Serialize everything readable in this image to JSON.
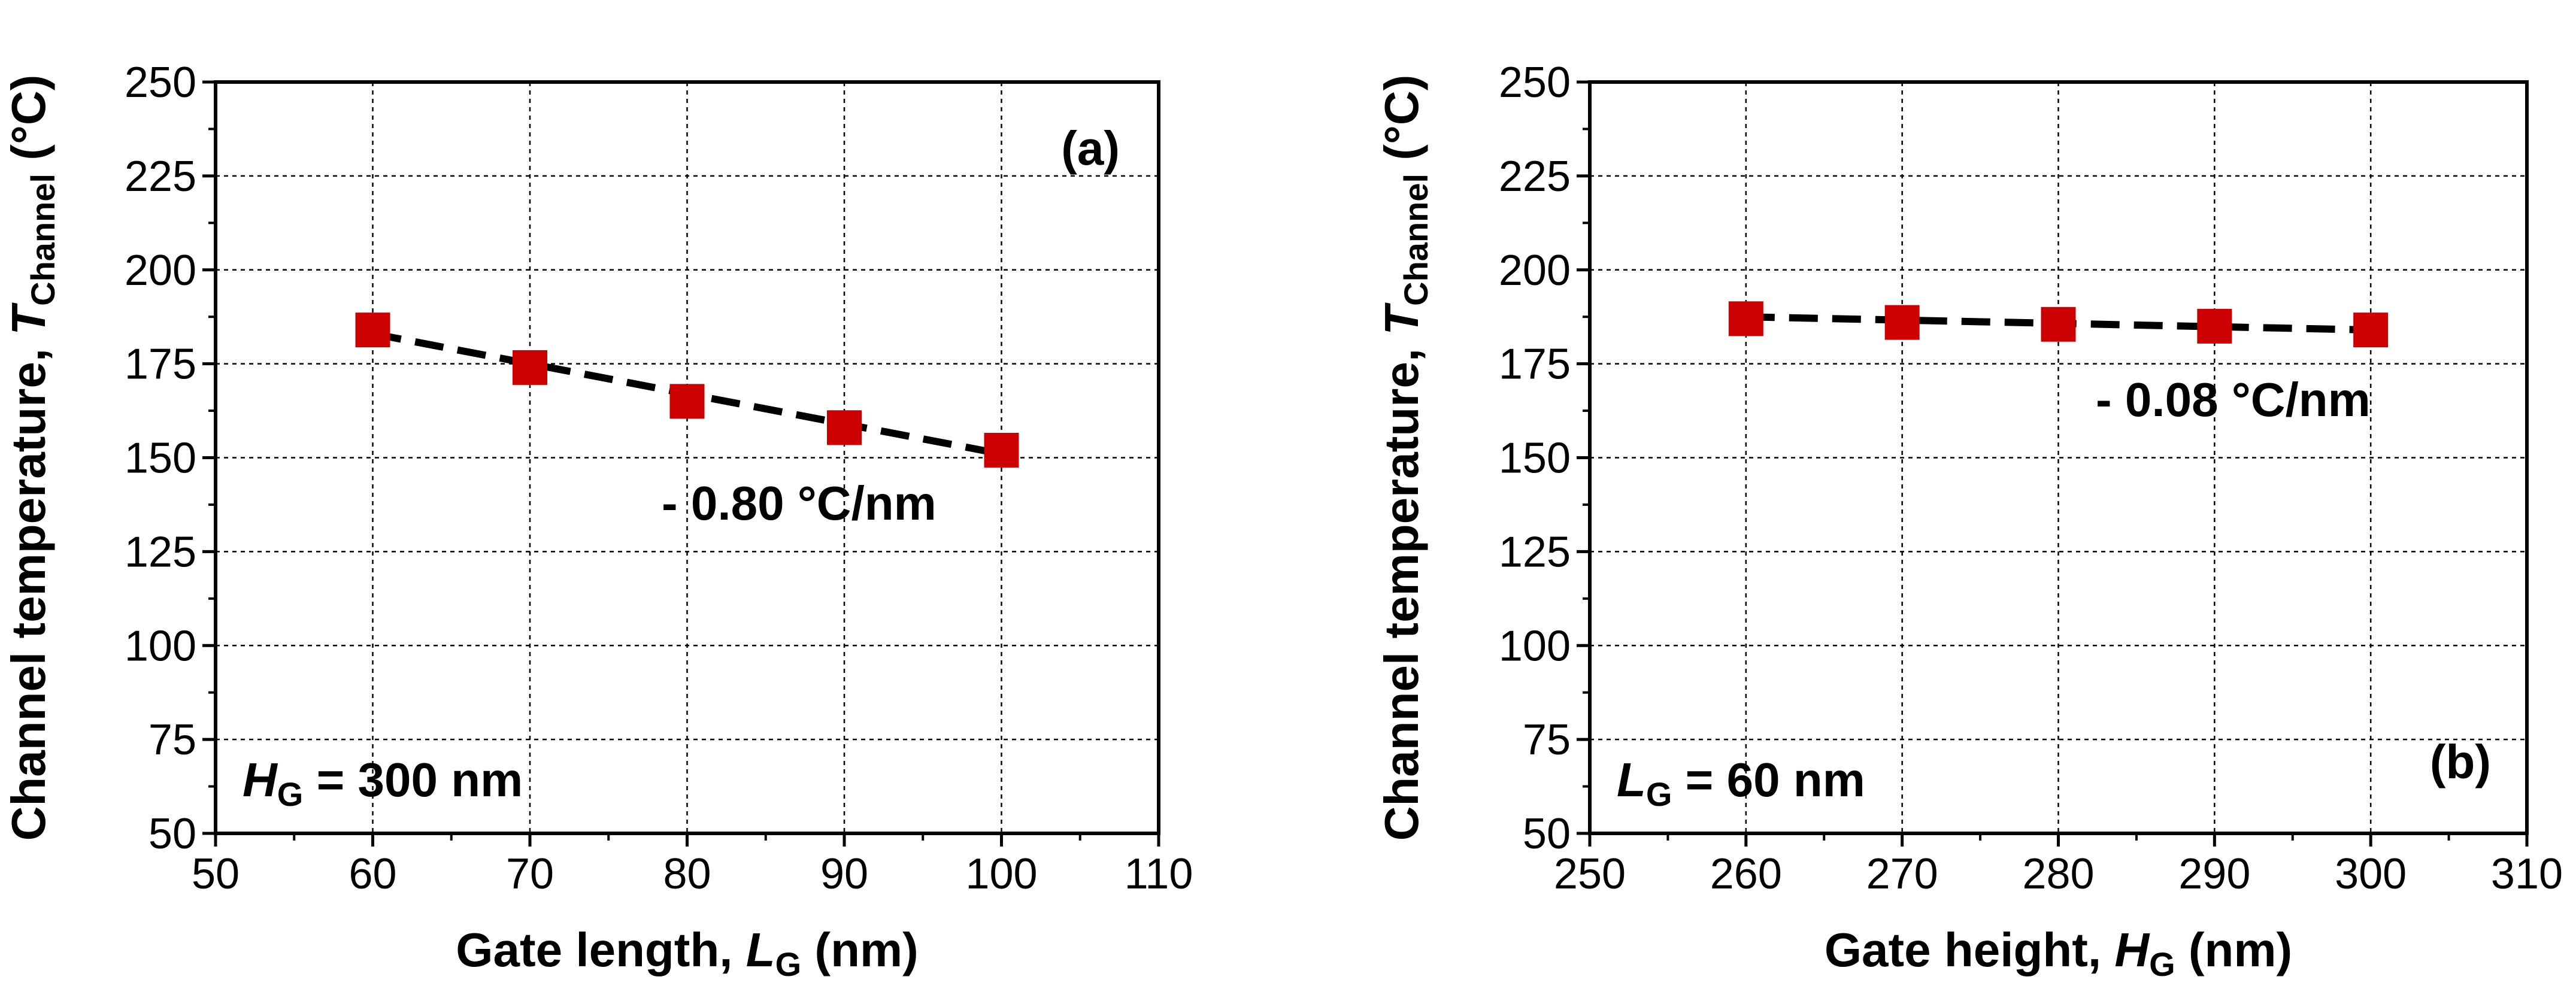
{
  "chart_data": [
    {
      "type": "scatter",
      "panel_label": "(a)",
      "x": [
        60,
        70,
        80,
        90,
        100
      ],
      "y": [
        184,
        174,
        165,
        158,
        152
      ],
      "fit": {
        "x": [
          60,
          100
        ],
        "y": [
          183,
          151
        ]
      },
      "xlim": [
        50,
        110
      ],
      "ylim": [
        50,
        250
      ],
      "xticks": [
        "50",
        "60",
        "70",
        "80",
        "90",
        "100",
        "110"
      ],
      "yticks": [
        "50",
        "75",
        "100",
        "125",
        "150",
        "175",
        "200",
        "225",
        "250"
      ],
      "xlabel": {
        "text": "Gate length, ",
        "var": "L",
        "sub": "G",
        "unit": " (nm)"
      },
      "ylabel": {
        "text": "Channel temperature, ",
        "var": "T",
        "sub": "Channel",
        "unit": " (°C)"
      },
      "slope_text": "- 0.80 °C/nm",
      "condition": {
        "var": "H",
        "sub": "G",
        "text": " = 300 nm"
      },
      "marker_color": "#cc0000"
    },
    {
      "type": "scatter",
      "panel_label": "(b)",
      "x": [
        260,
        270,
        280,
        290,
        300
      ],
      "y": [
        187,
        186,
        185.5,
        185,
        184
      ],
      "fit": {
        "x": [
          260,
          300
        ],
        "y": [
          187.5,
          184
        ]
      },
      "xlim": [
        250,
        310
      ],
      "ylim": [
        50,
        250
      ],
      "xticks": [
        "250",
        "260",
        "270",
        "280",
        "290",
        "300",
        "310"
      ],
      "yticks": [
        "50",
        "75",
        "100",
        "125",
        "150",
        "175",
        "200",
        "225",
        "250"
      ],
      "xlabel": {
        "text": "Gate height, ",
        "var": "H",
        "sub": "G",
        "unit": " (nm)"
      },
      "ylabel": {
        "text": "Channel temperature, ",
        "var": "T",
        "sub": "Channel",
        "unit": " (°C)"
      },
      "slope_text": "- 0.08 °C/nm",
      "condition": {
        "var": "L",
        "sub": "G",
        "text": " = 60 nm"
      },
      "marker_color": "#cc0000"
    }
  ]
}
